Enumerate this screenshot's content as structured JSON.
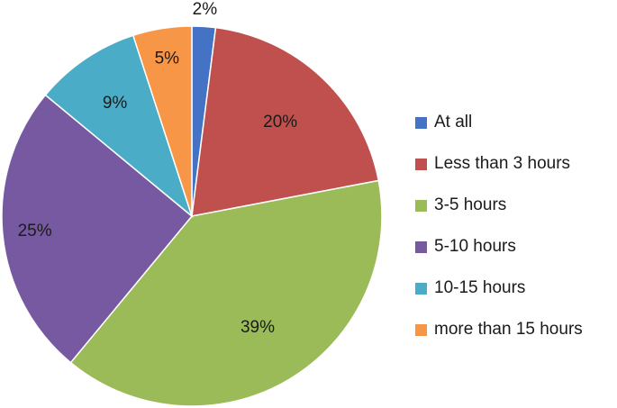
{
  "chart_data": {
    "type": "pie",
    "title": "",
    "categories": [
      "At all",
      "Less than 3 hours",
      "3-5 hours",
      "5-10 hours",
      "10-15 hours",
      "more than 15 hours"
    ],
    "values": [
      2,
      20,
      39,
      25,
      9,
      5
    ],
    "data_labels": [
      "2%",
      "20%",
      "39%",
      "25%",
      "9%",
      "5%"
    ],
    "colors": [
      "#4472c4",
      "#c0504d",
      "#9bbb59",
      "#7659a1",
      "#4aacc6",
      "#f79646"
    ],
    "legend_position": "right",
    "start_angle": "12 o'clock",
    "direction": "clockwise"
  }
}
